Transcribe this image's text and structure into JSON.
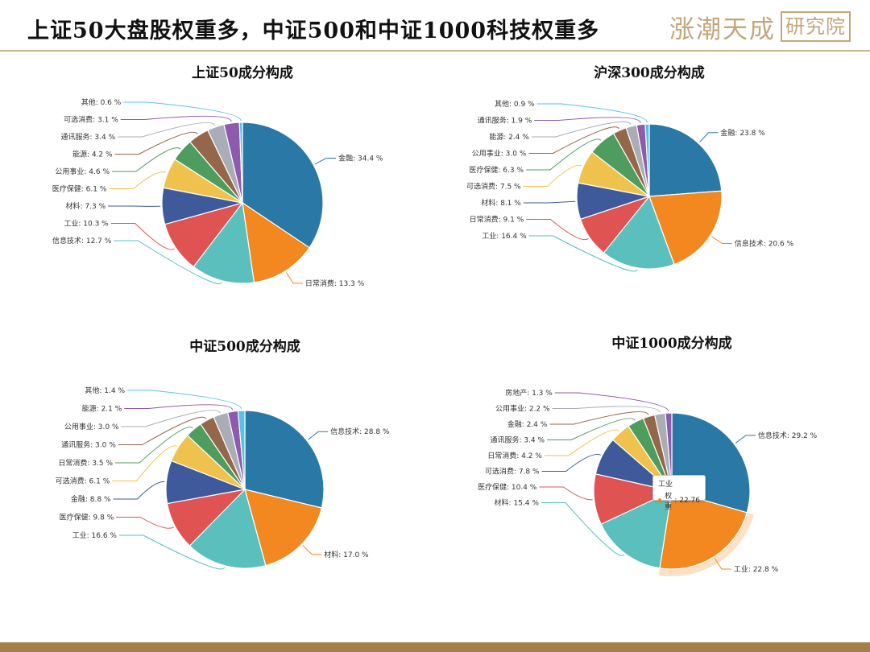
{
  "header": {
    "title": "上证50大盘股权重多，中证500和中证1000科技权重多",
    "brand_script": "涨潮天成",
    "brand_box": "研究院"
  },
  "chart_data": [
    {
      "type": "pie",
      "title": "上证50成分构成",
      "slices": [
        {
          "label": "金融",
          "value": 34.4,
          "color": "#2a78a5"
        },
        {
          "label": "日常消费",
          "value": 13.3,
          "color": "#f2881f"
        },
        {
          "label": "信息技术",
          "value": 12.7,
          "color": "#5bbfbe"
        },
        {
          "label": "工业",
          "value": 10.3,
          "color": "#e05353"
        },
        {
          "label": "材料",
          "value": 7.3,
          "color": "#3f5a9b"
        },
        {
          "label": "医疗保健",
          "value": 6.1,
          "color": "#eec24c"
        },
        {
          "label": "公用事业",
          "value": 4.6,
          "color": "#4f9c5f"
        },
        {
          "label": "能源",
          "value": 4.2,
          "color": "#94674a"
        },
        {
          "label": "通讯服务",
          "value": 3.4,
          "color": "#a9adb5"
        },
        {
          "label": "可选消费",
          "value": 3.1,
          "color": "#8e5aae"
        },
        {
          "label": "其他",
          "value": 0.6,
          "color": "#57c3e0"
        }
      ]
    },
    {
      "type": "pie",
      "title": "沪深300成分构成",
      "slices": [
        {
          "label": "金融",
          "value": 23.8,
          "color": "#2a78a5"
        },
        {
          "label": "信息技术",
          "value": 20.6,
          "color": "#f2881f"
        },
        {
          "label": "工业",
          "value": 16.4,
          "color": "#5bbfbe"
        },
        {
          "label": "日常消费",
          "value": 9.1,
          "color": "#e05353"
        },
        {
          "label": "材料",
          "value": 8.1,
          "color": "#3f5a9b"
        },
        {
          "label": "可选消费",
          "value": 7.5,
          "color": "#eec24c"
        },
        {
          "label": "医疗保健",
          "value": 6.3,
          "color": "#4f9c5f"
        },
        {
          "label": "公用事业",
          "value": 3.0,
          "color": "#94674a"
        },
        {
          "label": "能源",
          "value": 2.4,
          "color": "#a9adb5"
        },
        {
          "label": "通讯服务",
          "value": 1.9,
          "color": "#8e5aae"
        },
        {
          "label": "其他",
          "value": 0.9,
          "color": "#57c3e0"
        }
      ]
    },
    {
      "type": "pie",
      "title": "中证500成分构成",
      "slices": [
        {
          "label": "信息技术",
          "value": 28.8,
          "color": "#2a78a5"
        },
        {
          "label": "材料",
          "value": 17.0,
          "color": "#f2881f"
        },
        {
          "label": "工业",
          "value": 16.6,
          "color": "#5bbfbe"
        },
        {
          "label": "医疗保健",
          "value": 9.8,
          "color": "#e05353"
        },
        {
          "label": "金融",
          "value": 8.8,
          "color": "#3f5a9b"
        },
        {
          "label": "可选消费",
          "value": 6.1,
          "color": "#eec24c"
        },
        {
          "label": "日常消费",
          "value": 3.5,
          "color": "#4f9c5f"
        },
        {
          "label": "通讯服务",
          "value": 3.0,
          "color": "#94674a"
        },
        {
          "label": "公用事业",
          "value": 3.0,
          "color": "#a9adb5"
        },
        {
          "label": "能源",
          "value": 2.1,
          "color": "#8e5aae"
        },
        {
          "label": "其他",
          "value": 1.4,
          "color": "#57c3e0"
        }
      ]
    },
    {
      "type": "pie",
      "title": "中证1000成分构成",
      "slices": [
        {
          "label": "信息技术",
          "value": 29.2,
          "color": "#2a78a5"
        },
        {
          "label": "工业",
          "value": 22.8,
          "color": "#f2881f"
        },
        {
          "label": "材料",
          "value": 15.4,
          "color": "#5bbfbe"
        },
        {
          "label": "医疗保健",
          "value": 10.4,
          "color": "#e05353"
        },
        {
          "label": "可选消费",
          "value": 7.8,
          "color": "#3f5a9b"
        },
        {
          "label": "日常消费",
          "value": 4.2,
          "color": "#eec24c"
        },
        {
          "label": "通讯服务",
          "value": 3.4,
          "color": "#4f9c5f"
        },
        {
          "label": "金融",
          "value": 2.4,
          "color": "#94674a"
        },
        {
          "label": "公用事业",
          "value": 2.2,
          "color": "#a9adb5"
        },
        {
          "label": "房地产",
          "value": 1.3,
          "color": "#8e5aae"
        }
      ],
      "highlight_index": 1,
      "tooltip": {
        "category": "工业",
        "series": "权重",
        "value": "22.76"
      }
    }
  ]
}
